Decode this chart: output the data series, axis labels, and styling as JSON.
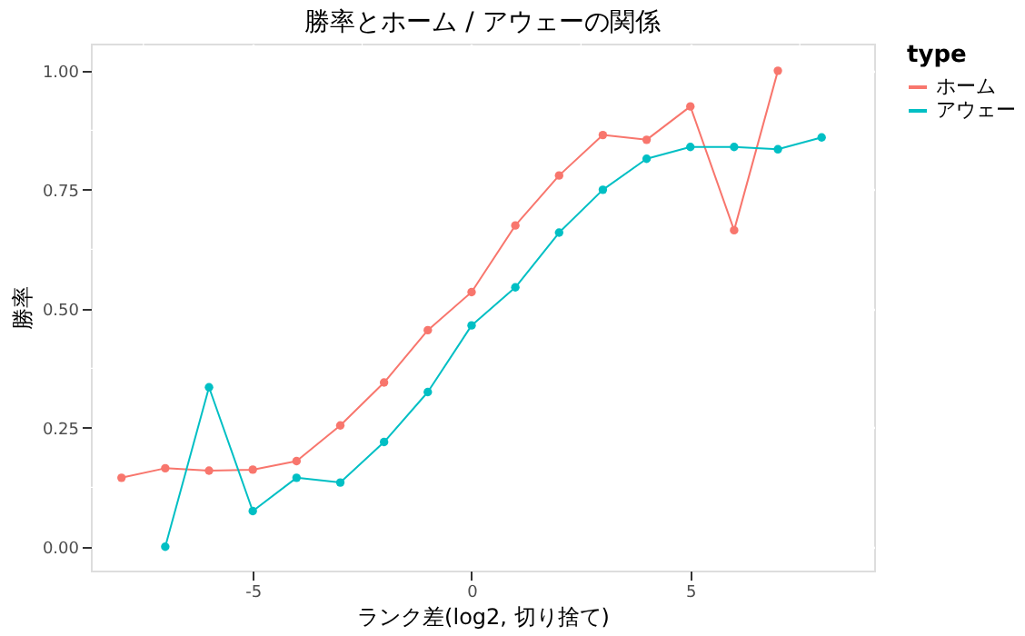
{
  "chart_data": {
    "type": "line",
    "title": "勝率とホーム / アウェーの関係",
    "xlabel": "ランク差(log2, 切り捨て)",
    "ylabel": "勝率",
    "legend_title": "type",
    "xlim": [
      -8.7,
      9.2
    ],
    "xticks": [
      -5,
      0,
      5
    ],
    "ylim": [
      -0.05,
      1.057
    ],
    "yticks": [
      {
        "value": 0,
        "label": "0.00"
      },
      {
        "value": 0.25,
        "label": "0.25"
      },
      {
        "value": 0.5,
        "label": "0.50"
      },
      {
        "value": 0.75,
        "label": "0.75"
      },
      {
        "value": 1,
        "label": "1.00"
      }
    ],
    "grid": true,
    "legend": "right",
    "marker": "circle",
    "line_style": "solid",
    "series": [
      {
        "name": "ホーム",
        "color": "#f8766d",
        "x": [
          -8,
          -7,
          -6,
          -5,
          -4,
          -3,
          -2,
          -1,
          0,
          1,
          2,
          3,
          4,
          5,
          6,
          7
        ],
        "values": [
          0.145,
          0.165,
          0.16,
          0.162,
          0.18,
          0.255,
          0.345,
          0.455,
          0.535,
          0.675,
          0.78,
          0.865,
          0.855,
          0.925,
          0.665,
          1.0
        ]
      },
      {
        "name": "アウェー",
        "color": "#00bfc4",
        "x": [
          -7,
          -6,
          -5,
          -4,
          -3,
          -2,
          -1,
          0,
          1,
          2,
          3,
          4,
          5,
          6,
          7,
          8
        ],
        "values": [
          0.0,
          0.335,
          0.075,
          0.145,
          0.135,
          0.22,
          0.325,
          0.465,
          0.545,
          0.66,
          0.75,
          0.815,
          0.84,
          0.84,
          0.835,
          0.86
        ]
      }
    ]
  }
}
